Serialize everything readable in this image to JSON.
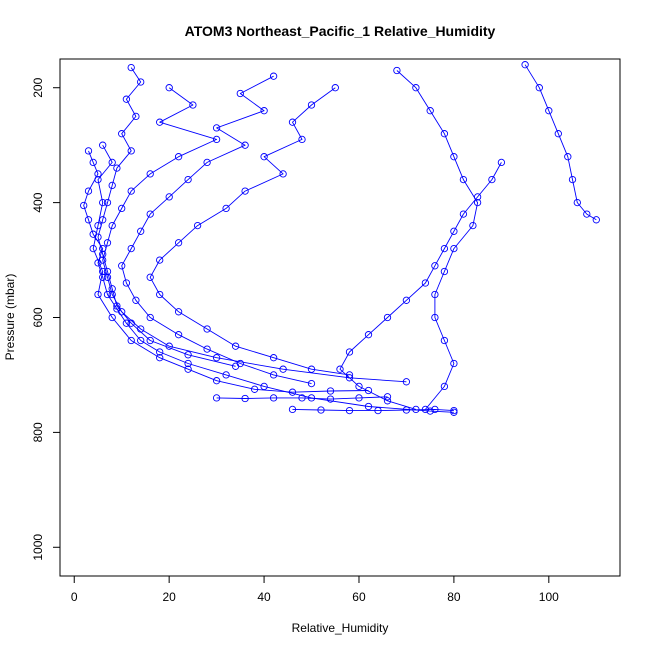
{
  "chart_data": {
    "type": "scatter",
    "title": "ATOM3 Northeast_Pacific_1 Relative_Humidity",
    "xlabel": "Relative_Humidity",
    "ylabel": "Pressure (mbar)",
    "xlim": [
      -3,
      115
    ],
    "ylim": [
      1050,
      150
    ],
    "y_reversed": true,
    "x_ticks": [
      0,
      20,
      40,
      60,
      80,
      100
    ],
    "y_ticks": [
      200,
      400,
      600,
      800,
      1000
    ],
    "grid": false,
    "legend": "none",
    "marker": "open-circle",
    "color": "#0000ff",
    "connected": true,
    "series": [
      {
        "points": [
          [
            6,
            300
          ],
          [
            8,
            330
          ],
          [
            5,
            360
          ],
          [
            6,
            400
          ],
          [
            5,
            440
          ],
          [
            4,
            480
          ],
          [
            6,
            520
          ],
          [
            5,
            560
          ],
          [
            8,
            600
          ],
          [
            12,
            640
          ],
          [
            18,
            670
          ],
          [
            24,
            690
          ],
          [
            30,
            710
          ],
          [
            38,
            725
          ],
          [
            46,
            730
          ],
          [
            54,
            728
          ],
          [
            62,
            727
          ]
        ]
      },
      {
        "points": [
          [
            3,
            310
          ],
          [
            4,
            330
          ],
          [
            5,
            350
          ],
          [
            3,
            380
          ],
          [
            2,
            405
          ],
          [
            3,
            430
          ],
          [
            4,
            455
          ],
          [
            6,
            480
          ],
          [
            5,
            505
          ],
          [
            6,
            530
          ],
          [
            7,
            560
          ],
          [
            9,
            585
          ],
          [
            11,
            610
          ],
          [
            14,
            640
          ],
          [
            18,
            660
          ],
          [
            24,
            680
          ],
          [
            32,
            700
          ],
          [
            40,
            720
          ],
          [
            50,
            740
          ],
          [
            62,
            755
          ],
          [
            75,
            763
          ],
          [
            80,
            765
          ]
        ]
      },
      {
        "points": [
          [
            20,
            200
          ],
          [
            25,
            230
          ],
          [
            18,
            260
          ],
          [
            30,
            290
          ],
          [
            22,
            320
          ],
          [
            16,
            350
          ],
          [
            12,
            380
          ],
          [
            10,
            410
          ],
          [
            8,
            440
          ],
          [
            7,
            470
          ],
          [
            6,
            500
          ],
          [
            7,
            530
          ],
          [
            8,
            560
          ],
          [
            10,
            590
          ],
          [
            14,
            620
          ],
          [
            20,
            650
          ],
          [
            30,
            670
          ],
          [
            44,
            690
          ],
          [
            58,
            705
          ],
          [
            70,
            712
          ]
        ]
      },
      {
        "points": [
          [
            95,
            160
          ],
          [
            98,
            200
          ],
          [
            100,
            240
          ],
          [
            102,
            280
          ],
          [
            104,
            320
          ],
          [
            105,
            360
          ],
          [
            106,
            400
          ],
          [
            108,
            420
          ],
          [
            110,
            430
          ]
        ]
      },
      {
        "points": [
          [
            90,
            330
          ],
          [
            88,
            360
          ],
          [
            85,
            390
          ],
          [
            82,
            420
          ],
          [
            80,
            450
          ],
          [
            78,
            480
          ],
          [
            76,
            510
          ],
          [
            74,
            540
          ],
          [
            70,
            570
          ],
          [
            66,
            600
          ],
          [
            62,
            630
          ],
          [
            58,
            660
          ],
          [
            56,
            690
          ],
          [
            60,
            720
          ],
          [
            66,
            745
          ],
          [
            72,
            760
          ]
        ]
      },
      {
        "points": [
          [
            68,
            170
          ],
          [
            72,
            200
          ],
          [
            75,
            240
          ],
          [
            78,
            280
          ],
          [
            80,
            320
          ],
          [
            82,
            360
          ],
          [
            85,
            400
          ],
          [
            84,
            440
          ],
          [
            80,
            480
          ],
          [
            78,
            520
          ],
          [
            76,
            560
          ],
          [
            76,
            600
          ],
          [
            78,
            640
          ],
          [
            80,
            680
          ],
          [
            78,
            720
          ],
          [
            74,
            760
          ]
        ]
      },
      {
        "points": [
          [
            42,
            180
          ],
          [
            35,
            210
          ],
          [
            40,
            240
          ],
          [
            30,
            270
          ],
          [
            36,
            300
          ],
          [
            28,
            330
          ],
          [
            24,
            360
          ],
          [
            20,
            390
          ],
          [
            16,
            420
          ],
          [
            14,
            450
          ],
          [
            12,
            480
          ],
          [
            10,
            510
          ],
          [
            11,
            540
          ],
          [
            13,
            570
          ],
          [
            16,
            600
          ],
          [
            22,
            630
          ],
          [
            28,
            655
          ],
          [
            35,
            680
          ],
          [
            42,
            700
          ],
          [
            50,
            715
          ]
        ]
      },
      {
        "points": [
          [
            12,
            165
          ],
          [
            14,
            190
          ],
          [
            11,
            220
          ],
          [
            13,
            250
          ],
          [
            10,
            280
          ],
          [
            12,
            310
          ],
          [
            9,
            340
          ],
          [
            8,
            370
          ],
          [
            7,
            400
          ],
          [
            6,
            430
          ],
          [
            5,
            460
          ],
          [
            6,
            490
          ],
          [
            7,
            520
          ],
          [
            8,
            550
          ],
          [
            9,
            580
          ],
          [
            12,
            610
          ],
          [
            16,
            640
          ],
          [
            24,
            665
          ],
          [
            34,
            685
          ]
        ]
      },
      {
        "points": [
          [
            55,
            200
          ],
          [
            50,
            230
          ],
          [
            46,
            260
          ],
          [
            48,
            290
          ],
          [
            40,
            320
          ],
          [
            44,
            350
          ],
          [
            36,
            380
          ],
          [
            32,
            410
          ],
          [
            26,
            440
          ],
          [
            22,
            470
          ],
          [
            18,
            500
          ],
          [
            16,
            530
          ],
          [
            18,
            560
          ],
          [
            22,
            590
          ],
          [
            28,
            620
          ],
          [
            34,
            650
          ],
          [
            42,
            670
          ],
          [
            50,
            690
          ],
          [
            58,
            700
          ]
        ]
      },
      {
        "points": [
          [
            30,
            740
          ],
          [
            36,
            741
          ],
          [
            42,
            740
          ],
          [
            48,
            740
          ],
          [
            54,
            742
          ],
          [
            60,
            740
          ],
          [
            66,
            738
          ]
        ]
      },
      {
        "points": [
          [
            46,
            760
          ],
          [
            52,
            761
          ],
          [
            58,
            762
          ],
          [
            64,
            762
          ],
          [
            70,
            761
          ],
          [
            76,
            760
          ],
          [
            80,
            762
          ]
        ]
      }
    ]
  }
}
